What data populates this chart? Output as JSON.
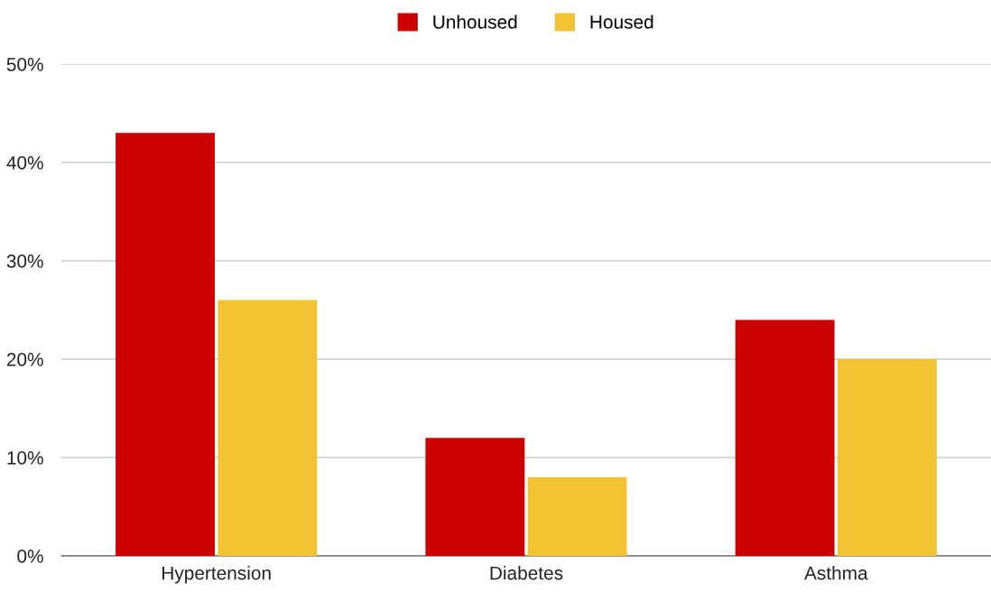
{
  "chart_data": {
    "type": "bar",
    "categories": [
      "Hypertension",
      "Diabetes",
      "Asthma"
    ],
    "series": [
      {
        "name": "Unhoused",
        "color": "#cc0000",
        "values": [
          43,
          12,
          24
        ]
      },
      {
        "name": "Housed",
        "color": "#f1c232",
        "values": [
          26,
          8,
          20
        ]
      }
    ],
    "ylim": [
      0,
      50
    ],
    "yticks": [
      {
        "value": 0,
        "label": "0%"
      },
      {
        "value": 10,
        "label": "10%"
      },
      {
        "value": 20,
        "label": "20%"
      },
      {
        "value": 30,
        "label": "30%"
      },
      {
        "value": 40,
        "label": "40%"
      },
      {
        "value": 50,
        "label": "50%"
      }
    ],
    "grid": "y",
    "legend": "top"
  }
}
